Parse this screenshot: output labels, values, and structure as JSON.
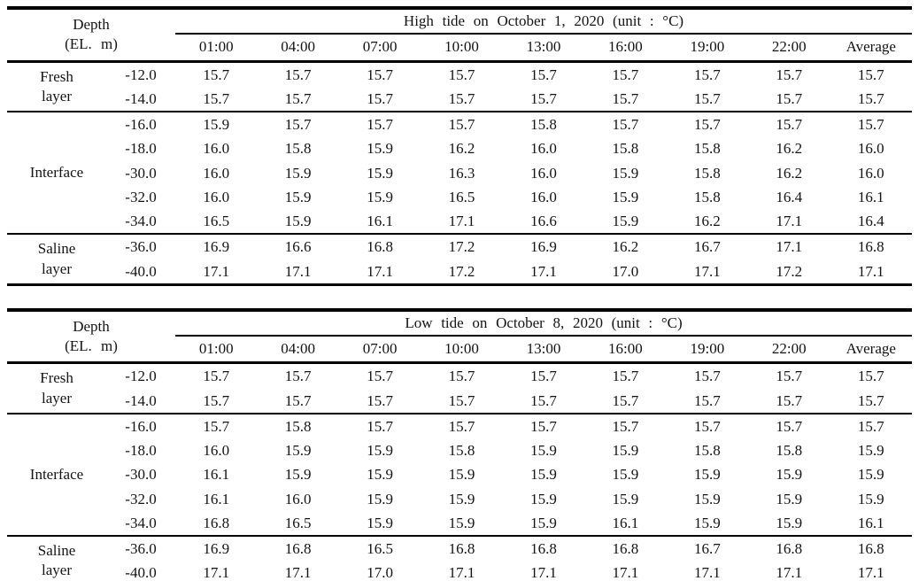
{
  "colors": {
    "background": "#ffffff",
    "text": "#141414",
    "rule": "#000000"
  },
  "tables": [
    {
      "caption": "High tide on October 1, 2020 (unit : °C)",
      "depth_header": [
        "Depth",
        "(EL. m)"
      ],
      "time_columns": [
        "01:00",
        "04:00",
        "07:00",
        "10:00",
        "13:00",
        "16:00",
        "19:00",
        "22:00",
        "Average"
      ],
      "groups": [
        {
          "layer": "Fresh layer",
          "layer_lines": [
            "Fresh",
            "layer"
          ],
          "rows": [
            {
              "depth": "-12.0",
              "values": [
                "15.7",
                "15.7",
                "15.7",
                "15.7",
                "15.7",
                "15.7",
                "15.7",
                "15.7",
                "15.7"
              ]
            },
            {
              "depth": "-14.0",
              "values": [
                "15.7",
                "15.7",
                "15.7",
                "15.7",
                "15.7",
                "15.7",
                "15.7",
                "15.7",
                "15.7"
              ]
            }
          ]
        },
        {
          "layer": "Interface",
          "layer_lines": [
            "Interface"
          ],
          "rows": [
            {
              "depth": "-16.0",
              "values": [
                "15.9",
                "15.7",
                "15.7",
                "15.7",
                "15.8",
                "15.7",
                "15.7",
                "15.7",
                "15.7"
              ]
            },
            {
              "depth": "-18.0",
              "values": [
                "16.0",
                "15.8",
                "15.9",
                "16.2",
                "16.0",
                "15.8",
                "15.8",
                "16.2",
                "16.0"
              ]
            },
            {
              "depth": "-30.0",
              "values": [
                "16.0",
                "15.9",
                "15.9",
                "16.3",
                "16.0",
                "15.9",
                "15.8",
                "16.2",
                "16.0"
              ]
            },
            {
              "depth": "-32.0",
              "values": [
                "16.0",
                "15.9",
                "15.9",
                "16.5",
                "16.0",
                "15.9",
                "15.8",
                "16.4",
                "16.1"
              ]
            },
            {
              "depth": "-34.0",
              "values": [
                "16.5",
                "15.9",
                "16.1",
                "17.1",
                "16.6",
                "15.9",
                "16.2",
                "17.1",
                "16.4"
              ]
            }
          ]
        },
        {
          "layer": "Saline layer",
          "layer_lines": [
            "Saline",
            "layer"
          ],
          "rows": [
            {
              "depth": "-36.0",
              "values": [
                "16.9",
                "16.6",
                "16.8",
                "17.2",
                "16.9",
                "16.2",
                "16.7",
                "17.1",
                "16.8"
              ]
            },
            {
              "depth": "-40.0",
              "values": [
                "17.1",
                "17.1",
                "17.1",
                "17.2",
                "17.1",
                "17.0",
                "17.1",
                "17.2",
                "17.1"
              ]
            }
          ]
        }
      ]
    },
    {
      "caption": "Low tide on October 8, 2020 (unit : °C)",
      "depth_header": [
        "Depth",
        "(EL. m)"
      ],
      "time_columns": [
        "01:00",
        "04:00",
        "07:00",
        "10:00",
        "13:00",
        "16:00",
        "19:00",
        "22:00",
        "Average"
      ],
      "groups": [
        {
          "layer": "Fresh layer",
          "layer_lines": [
            "Fresh",
            "layer"
          ],
          "rows": [
            {
              "depth": "-12.0",
              "values": [
                "15.7",
                "15.7",
                "15.7",
                "15.7",
                "15.7",
                "15.7",
                "15.7",
                "15.7",
                "15.7"
              ]
            },
            {
              "depth": "-14.0",
              "values": [
                "15.7",
                "15.7",
                "15.7",
                "15.7",
                "15.7",
                "15.7",
                "15.7",
                "15.7",
                "15.7"
              ]
            }
          ]
        },
        {
          "layer": "Interface",
          "layer_lines": [
            "Interface"
          ],
          "rows": [
            {
              "depth": "-16.0",
              "values": [
                "15.7",
                "15.8",
                "15.7",
                "15.7",
                "15.7",
                "15.7",
                "15.7",
                "15.7",
                "15.7"
              ]
            },
            {
              "depth": "-18.0",
              "values": [
                "16.0",
                "15.9",
                "15.9",
                "15.8",
                "15.9",
                "15.9",
                "15.8",
                "15.8",
                "15.9"
              ]
            },
            {
              "depth": "-30.0",
              "values": [
                "16.1",
                "15.9",
                "15.9",
                "15.9",
                "15.9",
                "15.9",
                "15.9",
                "15.9",
                "15.9"
              ]
            },
            {
              "depth": "-32.0",
              "values": [
                "16.1",
                "16.0",
                "15.9",
                "15.9",
                "15.9",
                "15.9",
                "15.9",
                "15.9",
                "15.9"
              ]
            },
            {
              "depth": "-34.0",
              "values": [
                "16.8",
                "16.5",
                "15.9",
                "15.9",
                "15.9",
                "16.1",
                "15.9",
                "15.9",
                "16.1"
              ]
            }
          ]
        },
        {
          "layer": "Saline layer",
          "layer_lines": [
            "Saline",
            "layer"
          ],
          "rows": [
            {
              "depth": "-36.0",
              "values": [
                "16.9",
                "16.8",
                "16.5",
                "16.8",
                "16.8",
                "16.8",
                "16.7",
                "16.8",
                "16.8"
              ]
            },
            {
              "depth": "-40.0",
              "values": [
                "17.1",
                "17.1",
                "17.0",
                "17.1",
                "17.1",
                "17.1",
                "17.1",
                "17.1",
                "17.1"
              ]
            }
          ]
        }
      ]
    }
  ]
}
